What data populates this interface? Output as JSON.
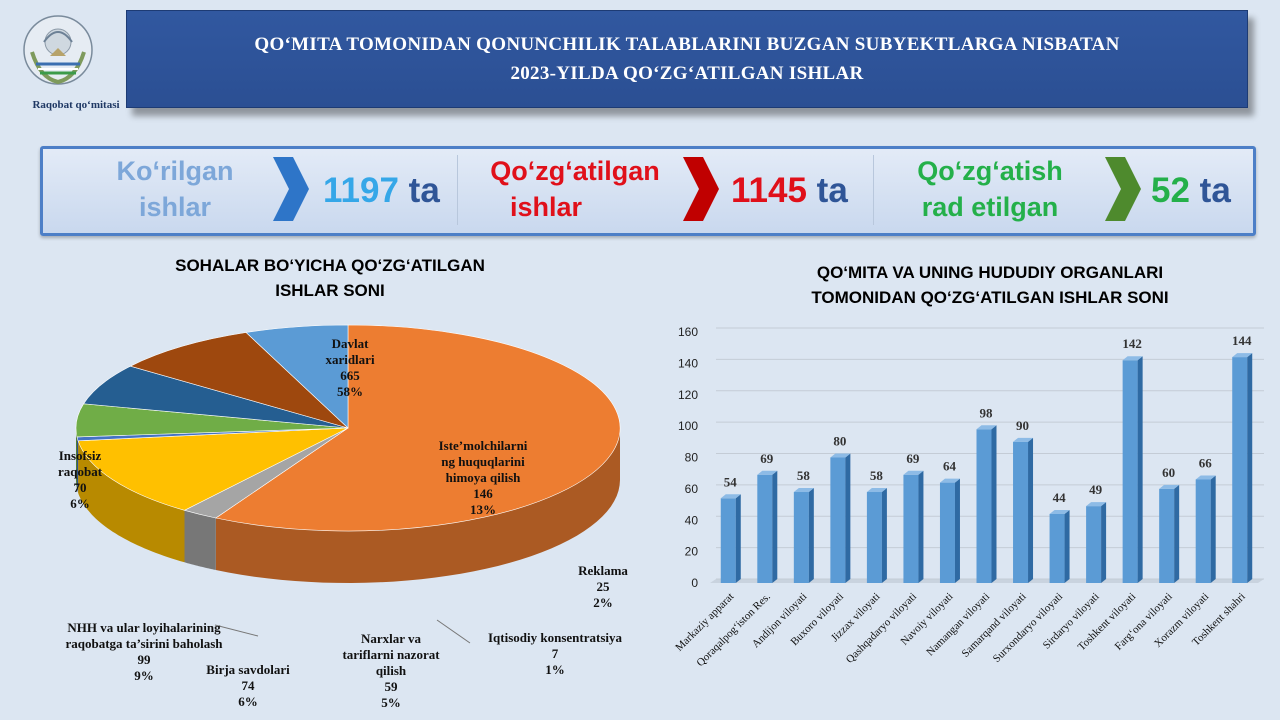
{
  "logo": {
    "caption": "Raqobat  qo‘mitasi"
  },
  "header": {
    "title_line1": "QO‘MITA TOMONIDAN QONUNCHILIK TALABLARINI BUZGAN SUBYEKTLARGA NISBATAN",
    "title_line2": "2023-YILDA QO‘ZG‘ATILGAN  ISHLAR"
  },
  "stats": [
    {
      "label_line1": "Ko‘rilgan",
      "label_line2": "ishlar",
      "value": "1197",
      "unit": "ta",
      "color": "#7da7d9",
      "value_color": "#35a7e8",
      "chevron_color": "#2e75c8"
    },
    {
      "label_line1": "Qo‘zg‘atilgan",
      "label_line2": "ishlar",
      "value": "1145",
      "unit": "ta",
      "color": "#e0101a",
      "value_color": "#e0101a",
      "chevron_color": "#c00000"
    },
    {
      "label_line1": "Qo‘zg‘atish",
      "label_line2": "rad etilgan",
      "value": "52",
      "unit": "ta",
      "color": "#24b04a",
      "value_color": "#24b04a",
      "chevron_color": "#4e8a2d"
    }
  ],
  "chart_data": [
    {
      "type": "pie",
      "title_line1": "SOHALAR BO‘YICHA QO‘ZG‘ATILGAN",
      "title_line2": "ISHLAR SONI",
      "slices": [
        {
          "label": "Davlat xaridlari",
          "lines": [
            "Davlat",
            "xaridlari"
          ],
          "value": 665,
          "percent": "58%",
          "color": "#ed7d31"
        },
        {
          "label": "Reklama",
          "lines": [
            "Reklama"
          ],
          "value": 25,
          "percent": "2%",
          "color": "#a5a5a5"
        },
        {
          "label": "Iste’molchilarni ng huquqlarini himoya qilish",
          "lines": [
            "Iste’molchilarni",
            "ng huquqlarini",
            "himoya qilish"
          ],
          "value": 146,
          "percent": "13%",
          "color": "#ffc000"
        },
        {
          "label": "Iqtisodiy konsentratsiya",
          "lines": [
            "Iqtisodiy konsentratsiya"
          ],
          "value": 7,
          "percent": "1%",
          "color": "#4472c4"
        },
        {
          "label": "Narxlar va tariflarni nazorat qilish",
          "lines": [
            "Narxlar va",
            "tariflarni  nazorat",
            "qilish"
          ],
          "value": 59,
          "percent": "5%",
          "color": "#70ad47"
        },
        {
          "label": "Birja savdolari",
          "lines": [
            "Birja savdolari"
          ],
          "value": 74,
          "percent": "6%",
          "color": "#255e91"
        },
        {
          "label": "NHH va ular loyihalarining raqobatga ta’sirini baholash",
          "lines": [
            "NHH va ular loyihalarining",
            "raqobatga ta’sirini baholash"
          ],
          "value": 99,
          "percent": "9%",
          "color": "#9e480e"
        },
        {
          "label": "Insofsiz raqobat",
          "lines": [
            "Insofsiz",
            "raqobat"
          ],
          "value": 70,
          "percent": "6%",
          "color": "#5b9bd5"
        }
      ]
    },
    {
      "type": "bar",
      "title_line1": "QO‘MITA  VA UNING HUDUDIY  ORGANLARI",
      "title_line2": "TOMONIDAN  QO‘ZG‘ATILGAN  ISHLAR SONI",
      "categories": [
        "Markaziy apparat",
        "Qoraqalpog‘iston  Res.",
        "Andijon  viloyati",
        "Buxoro  viloyati",
        "Jizzax  viloyati",
        "Qashqadaryo  viloyati",
        "Navoiy  viloyati",
        "Namangan  viloyati",
        "Samarqand  viloyati",
        "Surxondaryo  viloyati",
        "Sirdaryo  viloyati",
        "Toshkent  viloyati",
        "Farg‘ona  viloyati",
        "Xorazm  viloyati",
        "Toshkent  shahri"
      ],
      "values": [
        54,
        69,
        58,
        80,
        58,
        69,
        64,
        98,
        90,
        44,
        49,
        142,
        60,
        66,
        144
      ],
      "ylim": [
        0,
        160
      ],
      "yticks": [
        0,
        20,
        40,
        60,
        80,
        100,
        120,
        140,
        160
      ],
      "grid": true,
      "bar_color": "#5b9bd5"
    }
  ]
}
